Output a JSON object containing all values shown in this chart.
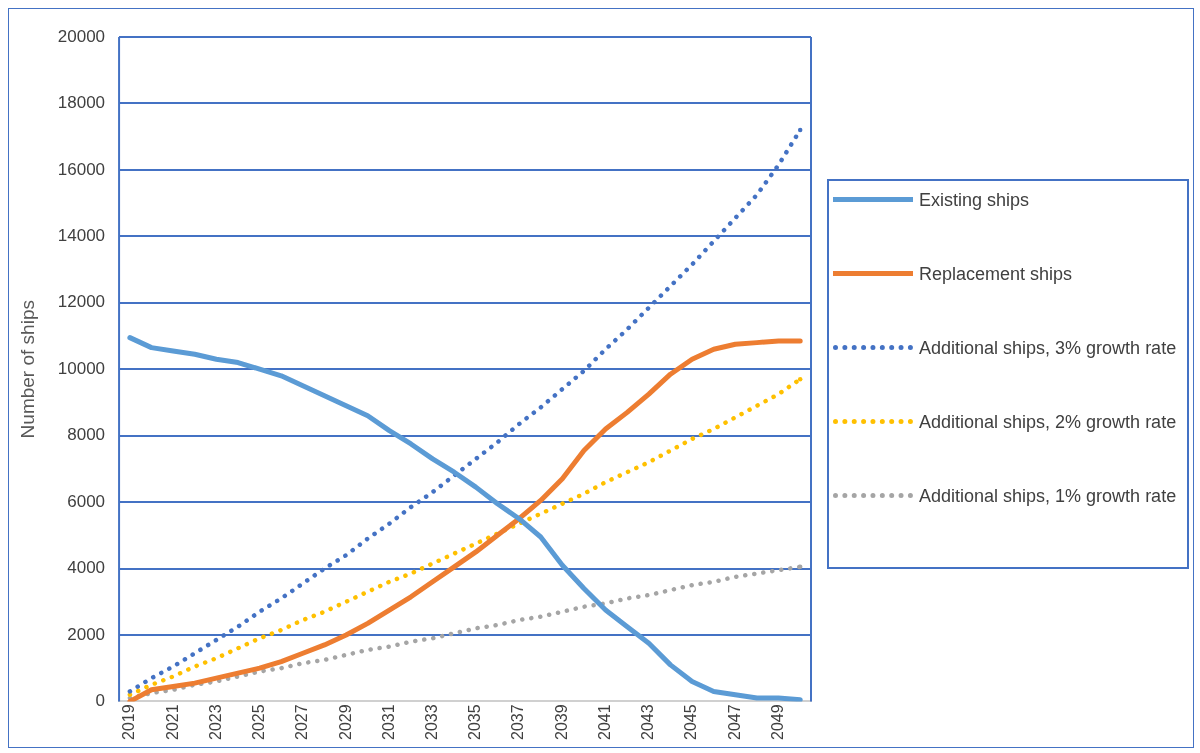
{
  "chart_data": {
    "type": "line",
    "ylabel": "Number of ships",
    "x": [
      2019,
      2020,
      2021,
      2022,
      2023,
      2024,
      2025,
      2026,
      2027,
      2028,
      2029,
      2030,
      2031,
      2032,
      2033,
      2034,
      2035,
      2036,
      2037,
      2038,
      2039,
      2040,
      2041,
      2042,
      2043,
      2044,
      2045,
      2046,
      2047,
      2048,
      2049,
      2050
    ],
    "xlim": [
      2018.5,
      2050.5
    ],
    "xticks": [
      2019,
      2021,
      2023,
      2025,
      2027,
      2029,
      2031,
      2033,
      2035,
      2037,
      2039,
      2041,
      2043,
      2045,
      2047,
      2049
    ],
    "ylim": [
      0,
      20000
    ],
    "yticks": [
      0,
      2000,
      4000,
      6000,
      8000,
      10000,
      12000,
      14000,
      16000,
      18000,
      20000
    ],
    "grid": "y",
    "legend": "right",
    "marker": "none",
    "series": [
      {
        "name": "Existing ships",
        "color": "#5b9bd5",
        "line_style": "solid",
        "values": [
          10950,
          10650,
          10550,
          10450,
          10300,
          10200,
          10000,
          9800,
          9500,
          9200,
          8900,
          8600,
          8150,
          7750,
          7300,
          6900,
          6450,
          5950,
          5500,
          4950,
          4100,
          3400,
          2750,
          2250,
          1750,
          1100,
          600,
          300,
          200,
          100,
          100,
          50
        ]
      },
      {
        "name": "Replacement ships",
        "color": "#ed7d31",
        "line_style": "solid",
        "values": [
          0,
          350,
          450,
          550,
          700,
          850,
          1000,
          1200,
          1450,
          1700,
          2000,
          2350,
          2750,
          3150,
          3600,
          4050,
          4500,
          5000,
          5500,
          6050,
          6700,
          7550,
          8200,
          8700,
          9250,
          9850,
          10300,
          10600,
          10750,
          10800,
          10850,
          10850
        ]
      },
      {
        "name": "Additional ships, 3% growth rate",
        "color": "#4472c4",
        "line_style": "dotted",
        "values": [
          300,
          700,
          1050,
          1450,
          1850,
          2250,
          2700,
          3100,
          3550,
          4000,
          4400,
          4900,
          5350,
          5850,
          6300,
          6800,
          7300,
          7800,
          8350,
          8850,
          9400,
          9950,
          10600,
          11200,
          11850,
          12500,
          13150,
          13850,
          14550,
          15250,
          16150,
          17200
        ]
      },
      {
        "name": "Additional ships, 2% growth rate",
        "color": "#ffc000",
        "line_style": "dotted",
        "values": [
          200,
          500,
          750,
          1050,
          1300,
          1600,
          1900,
          2150,
          2450,
          2700,
          3000,
          3300,
          3600,
          3850,
          4150,
          4450,
          4750,
          5050,
          5350,
          5650,
          5950,
          6250,
          6600,
          6900,
          7200,
          7550,
          7900,
          8200,
          8550,
          8900,
          9250,
          9700
        ]
      },
      {
        "name": "Additional ships, 1% growth rate",
        "color": "#a5a5a5",
        "line_style": "dotted",
        "values": [
          100,
          250,
          350,
          500,
          600,
          750,
          900,
          1000,
          1150,
          1250,
          1400,
          1550,
          1650,
          1800,
          1900,
          2050,
          2200,
          2300,
          2450,
          2550,
          2700,
          2850,
          2950,
          3100,
          3200,
          3350,
          3500,
          3600,
          3750,
          3850,
          3950,
          4050
        ]
      }
    ]
  }
}
